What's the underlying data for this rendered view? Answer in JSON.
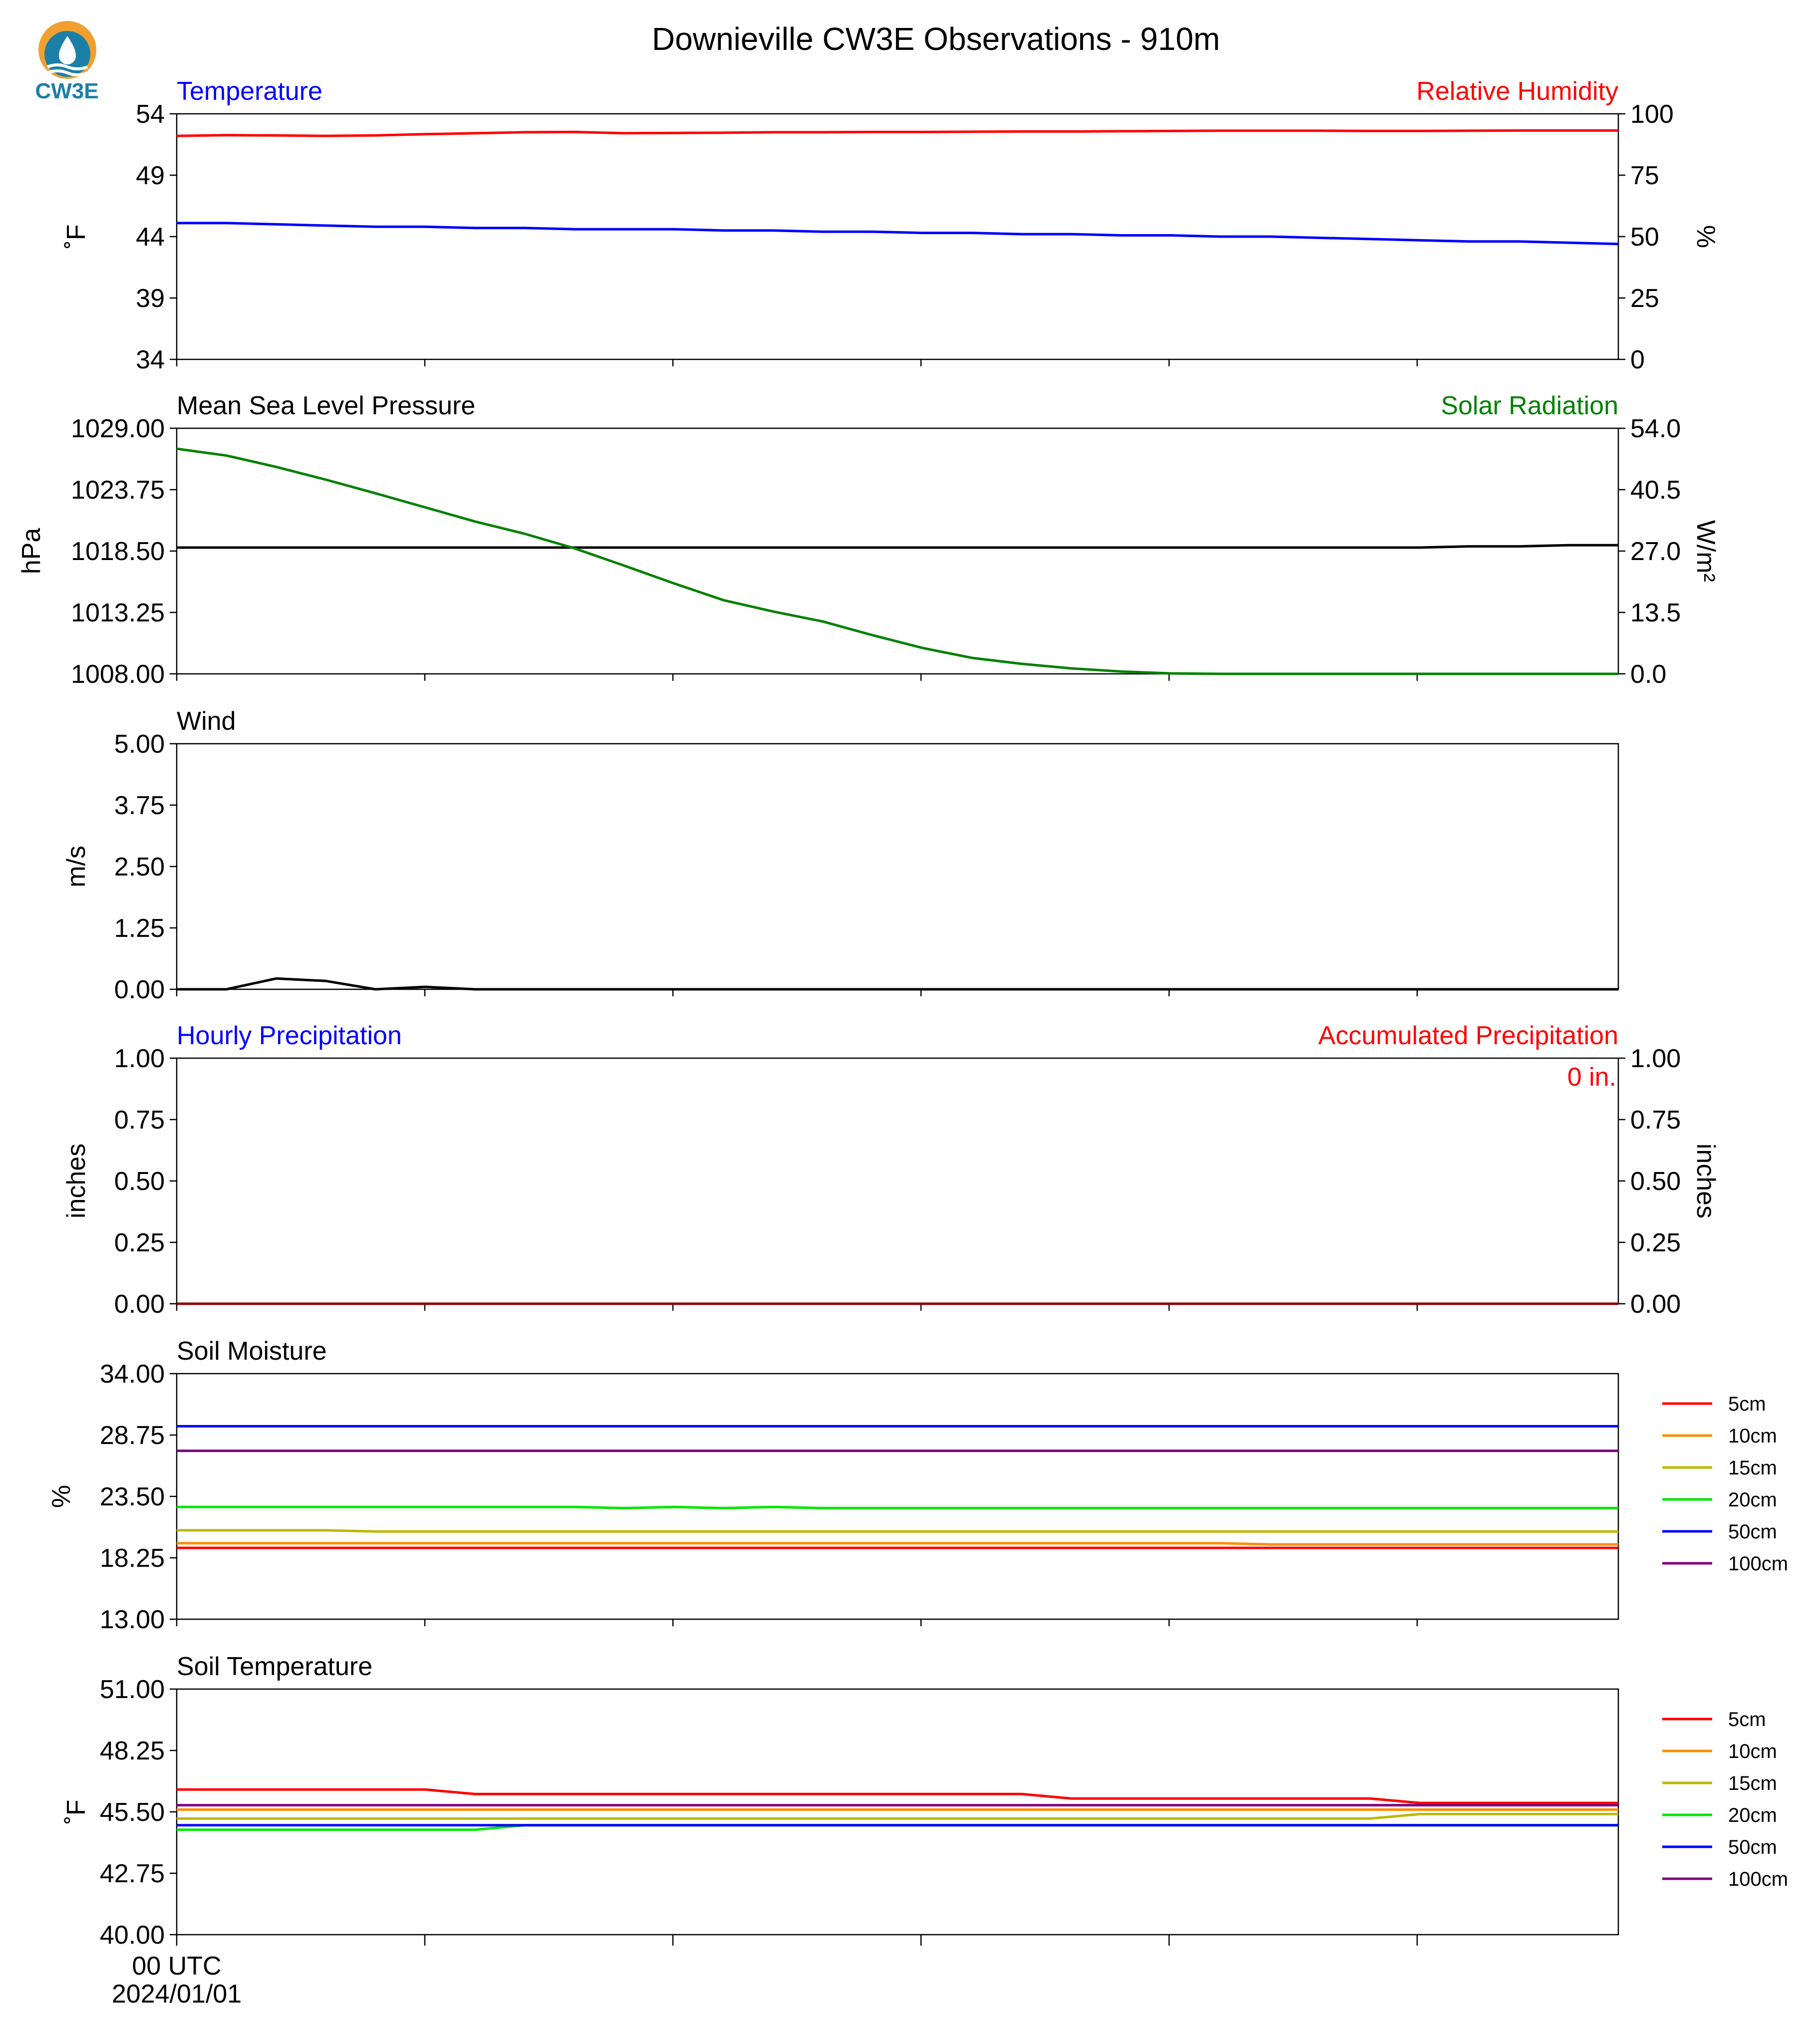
{
  "logo": {
    "text": "CW3E"
  },
  "figure": {
    "title": "Downieville CW3E Observations - 910m"
  },
  "colors": {
    "temperature": "#0000ff",
    "humidity": "#ff0000",
    "pressure": "#000000",
    "solar": "#008000",
    "wind": "#000000",
    "hourly_precip": "#0000ff",
    "accum_precip": "#ff0000",
    "accum_line": "#8b0000",
    "5cm": "#ff0000",
    "10cm": "#ff8c00",
    "15cm": "#bdb800",
    "20cm": "#00e600",
    "50cm": "#0000ff",
    "100cm": "#800080"
  },
  "chart_data": [
    {
      "type": "line",
      "x": [
        0,
        1,
        2,
        3,
        4,
        5,
        6,
        7,
        8,
        9,
        10,
        11,
        12,
        13,
        14,
        15,
        16,
        17,
        18,
        19,
        20,
        21,
        22,
        23,
        24,
        25,
        26,
        27,
        28,
        29
      ],
      "left_title": "Temperature",
      "right_title": "Relative Humidity",
      "ylabel": "˚F",
      "y2label": "%",
      "ylim": [
        34,
        54
      ],
      "y2lim": [
        0,
        100
      ],
      "yticks": [
        "54",
        "49",
        "44",
        "39",
        "34"
      ],
      "y2ticks": [
        "100",
        "75",
        "50",
        "25",
        "0"
      ],
      "series": [
        {
          "axis": "left",
          "color": "#0000ff",
          "values": [
            45.1,
            45.1,
            45.0,
            44.9,
            44.8,
            44.8,
            44.7,
            44.7,
            44.6,
            44.6,
            44.6,
            44.5,
            44.5,
            44.4,
            44.4,
            44.3,
            44.3,
            44.2,
            44.2,
            44.1,
            44.1,
            44.0,
            44.0,
            43.9,
            43.8,
            43.7,
            43.6,
            43.6,
            43.5,
            43.4
          ]
        },
        {
          "axis": "right",
          "color": "#ff0000",
          "values": [
            91.0,
            91.3,
            91.2,
            91.0,
            91.2,
            91.7,
            92.1,
            92.5,
            92.6,
            92.1,
            92.2,
            92.3,
            92.5,
            92.5,
            92.6,
            92.6,
            92.7,
            92.8,
            92.8,
            92.9,
            93.0,
            93.1,
            93.1,
            93.1,
            93.0,
            93.0,
            93.1,
            93.2,
            93.2,
            93.2
          ]
        }
      ]
    },
    {
      "type": "line",
      "x": [
        0,
        1,
        2,
        3,
        4,
        5,
        6,
        7,
        8,
        9,
        10,
        11,
        12,
        13,
        14,
        15,
        16,
        17,
        18,
        19,
        20,
        21,
        22,
        23,
        24,
        25,
        26,
        27,
        28,
        29
      ],
      "left_title": "Mean Sea Level Pressure",
      "right_title": "Solar Radiation",
      "ylabel": "hPa",
      "y2label": "W/m²",
      "ylim": [
        1008,
        1029
      ],
      "y2lim": [
        0,
        54
      ],
      "yticks": [
        "1029.00",
        "1023.75",
        "1018.50",
        "1013.25",
        "1008.00"
      ],
      "y2ticks": [
        "54.0",
        "40.5",
        "27.0",
        "13.5",
        "0.0"
      ],
      "series": [
        {
          "axis": "left",
          "color": "#000000",
          "values": [
            1018.8,
            1018.8,
            1018.8,
            1018.8,
            1018.8,
            1018.8,
            1018.8,
            1018.8,
            1018.8,
            1018.8,
            1018.8,
            1018.8,
            1018.8,
            1018.8,
            1018.8,
            1018.8,
            1018.8,
            1018.8,
            1018.8,
            1018.8,
            1018.8,
            1018.8,
            1018.8,
            1018.8,
            1018.8,
            1018.8,
            1018.9,
            1018.9,
            1019.0,
            1019.0
          ]
        },
        {
          "axis": "right",
          "color": "#008000",
          "values": [
            49.5,
            48.0,
            45.5,
            42.7,
            39.7,
            36.6,
            33.5,
            30.8,
            27.6,
            23.8,
            19.9,
            16.2,
            13.7,
            11.5,
            8.5,
            5.7,
            3.5,
            2.2,
            1.2,
            0.5,
            0.1,
            0,
            0,
            0,
            0,
            0,
            0,
            0,
            0,
            0
          ]
        }
      ]
    },
    {
      "type": "line",
      "x": [
        0,
        1,
        2,
        3,
        4,
        5,
        6,
        7,
        8,
        9,
        10,
        11,
        12,
        13,
        14,
        15,
        16,
        17,
        18,
        19,
        20,
        21,
        22,
        23,
        24,
        25,
        26,
        27,
        28,
        29
      ],
      "left_title": "Wind",
      "ylabel": "m/s",
      "ylim": [
        0,
        5
      ],
      "yticks": [
        "5.00",
        "3.75",
        "2.50",
        "1.25",
        "0.00"
      ],
      "series": [
        {
          "axis": "left",
          "color": "#000000",
          "values": [
            0,
            0,
            0.22,
            0.17,
            0,
            0.05,
            0,
            0,
            0,
            0,
            0,
            0,
            0,
            0,
            0,
            0,
            0,
            0,
            0,
            0,
            0,
            0,
            0,
            0,
            0,
            0,
            0,
            0,
            0,
            0
          ]
        }
      ]
    },
    {
      "type": "line",
      "x": [
        0,
        1,
        2,
        3,
        4,
        5,
        6,
        7,
        8,
        9,
        10,
        11,
        12,
        13,
        14,
        15,
        16,
        17,
        18,
        19,
        20,
        21,
        22,
        23,
        24,
        25,
        26,
        27,
        28,
        29
      ],
      "left_title": "Hourly Precipitation",
      "right_title": "Accumulated Precipitation",
      "ylabel": "inches",
      "y2label": "inches",
      "ylim": [
        0,
        1
      ],
      "y2lim": [
        0,
        1
      ],
      "yticks": [
        "1.00",
        "0.75",
        "0.50",
        "0.25",
        "0.00"
      ],
      "y2ticks": [
        "1.00",
        "0.75",
        "0.50",
        "0.25",
        "0.00"
      ],
      "annotation": "0 in.",
      "series": [
        {
          "axis": "left",
          "color": "#0000ff",
          "values": [
            0,
            0,
            0,
            0,
            0,
            0,
            0,
            0,
            0,
            0,
            0,
            0,
            0,
            0,
            0,
            0,
            0,
            0,
            0,
            0,
            0,
            0,
            0,
            0,
            0,
            0,
            0,
            0,
            0,
            0
          ]
        },
        {
          "axis": "right",
          "color": "#8b0000",
          "values": [
            0,
            0,
            0,
            0,
            0,
            0,
            0,
            0,
            0,
            0,
            0,
            0,
            0,
            0,
            0,
            0,
            0,
            0,
            0,
            0,
            0,
            0,
            0,
            0,
            0,
            0,
            0,
            0,
            0,
            0
          ]
        }
      ]
    },
    {
      "type": "line",
      "x": [
        0,
        1,
        2,
        3,
        4,
        5,
        6,
        7,
        8,
        9,
        10,
        11,
        12,
        13,
        14,
        15,
        16,
        17,
        18,
        19,
        20,
        21,
        22,
        23,
        24,
        25,
        26,
        27,
        28,
        29
      ],
      "left_title": "Soil Moisture",
      "ylabel": "%",
      "ylim": [
        13,
        34
      ],
      "yticks": [
        "34.00",
        "28.75",
        "23.50",
        "18.25",
        "13.00"
      ],
      "legend": "right",
      "series": [
        {
          "name": "5cm",
          "color": "#ff0000",
          "values": [
            19.1,
            19.1,
            19.1,
            19.1,
            19.1,
            19.1,
            19.1,
            19.1,
            19.1,
            19.1,
            19.1,
            19.1,
            19.1,
            19.1,
            19.1,
            19.1,
            19.1,
            19.1,
            19.1,
            19.1,
            19.1,
            19.1,
            19.1,
            19.1,
            19.1,
            19.1,
            19.1,
            19.1,
            19.1,
            19.1
          ]
        },
        {
          "name": "10cm",
          "color": "#ff8c00",
          "values": [
            19.5,
            19.5,
            19.5,
            19.5,
            19.5,
            19.5,
            19.5,
            19.5,
            19.5,
            19.5,
            19.5,
            19.5,
            19.5,
            19.5,
            19.5,
            19.5,
            19.5,
            19.5,
            19.5,
            19.5,
            19.5,
            19.5,
            19.4,
            19.4,
            19.4,
            19.4,
            19.4,
            19.4,
            19.4,
            19.4
          ]
        },
        {
          "name": "15cm",
          "color": "#bdb800",
          "values": [
            20.6,
            20.6,
            20.6,
            20.6,
            20.5,
            20.5,
            20.5,
            20.5,
            20.5,
            20.5,
            20.5,
            20.5,
            20.5,
            20.5,
            20.5,
            20.5,
            20.5,
            20.5,
            20.5,
            20.5,
            20.5,
            20.5,
            20.5,
            20.5,
            20.5,
            20.5,
            20.5,
            20.5,
            20.5,
            20.5
          ]
        },
        {
          "name": "20cm",
          "color": "#00e600",
          "values": [
            22.6,
            22.6,
            22.6,
            22.6,
            22.6,
            22.6,
            22.6,
            22.6,
            22.6,
            22.5,
            22.6,
            22.5,
            22.6,
            22.5,
            22.5,
            22.5,
            22.5,
            22.5,
            22.5,
            22.5,
            22.5,
            22.5,
            22.5,
            22.5,
            22.5,
            22.5,
            22.5,
            22.5,
            22.5,
            22.5
          ]
        },
        {
          "name": "50cm",
          "color": "#0000ff",
          "values": [
            29.5,
            29.5,
            29.5,
            29.5,
            29.5,
            29.5,
            29.5,
            29.5,
            29.5,
            29.5,
            29.5,
            29.5,
            29.5,
            29.5,
            29.5,
            29.5,
            29.5,
            29.5,
            29.5,
            29.5,
            29.5,
            29.5,
            29.5,
            29.5,
            29.5,
            29.5,
            29.5,
            29.5,
            29.5,
            29.5
          ]
        },
        {
          "name": "100cm",
          "color": "#800080",
          "values": [
            27.4,
            27.4,
            27.4,
            27.4,
            27.4,
            27.4,
            27.4,
            27.4,
            27.4,
            27.4,
            27.4,
            27.4,
            27.4,
            27.4,
            27.4,
            27.4,
            27.4,
            27.4,
            27.4,
            27.4,
            27.4,
            27.4,
            27.4,
            27.4,
            27.4,
            27.4,
            27.4,
            27.4,
            27.4,
            27.4
          ]
        }
      ]
    },
    {
      "type": "line",
      "x": [
        0,
        1,
        2,
        3,
        4,
        5,
        6,
        7,
        8,
        9,
        10,
        11,
        12,
        13,
        14,
        15,
        16,
        17,
        18,
        19,
        20,
        21,
        22,
        23,
        24,
        25,
        26,
        27,
        28,
        29
      ],
      "left_title": "Soil Temperature",
      "ylabel": "˚F",
      "ylim": [
        40,
        51
      ],
      "yticks": [
        "51.00",
        "48.25",
        "45.50",
        "42.75",
        "40.00"
      ],
      "xticks": [
        "00 UTC\n2024/01/01",
        "",
        "",
        "",
        "",
        ""
      ],
      "legend": "right",
      "series": [
        {
          "name": "5cm",
          "color": "#ff0000",
          "values": [
            46.5,
            46.5,
            46.5,
            46.5,
            46.5,
            46.5,
            46.3,
            46.3,
            46.3,
            46.3,
            46.3,
            46.3,
            46.3,
            46.3,
            46.3,
            46.3,
            46.3,
            46.3,
            46.1,
            46.1,
            46.1,
            46.1,
            46.1,
            46.1,
            46.1,
            45.9,
            45.9,
            45.9,
            45.9,
            45.9
          ]
        },
        {
          "name": "10cm",
          "color": "#ff8c00",
          "values": [
            45.6,
            45.6,
            45.6,
            45.6,
            45.6,
            45.6,
            45.6,
            45.6,
            45.6,
            45.6,
            45.6,
            45.6,
            45.6,
            45.6,
            45.6,
            45.6,
            45.6,
            45.6,
            45.6,
            45.6,
            45.6,
            45.6,
            45.6,
            45.6,
            45.6,
            45.6,
            45.6,
            45.6,
            45.6,
            45.6
          ]
        },
        {
          "name": "15cm",
          "color": "#bdb800",
          "values": [
            45.2,
            45.2,
            45.2,
            45.2,
            45.2,
            45.2,
            45.2,
            45.2,
            45.2,
            45.2,
            45.2,
            45.2,
            45.2,
            45.2,
            45.2,
            45.2,
            45.2,
            45.2,
            45.2,
            45.2,
            45.2,
            45.2,
            45.2,
            45.2,
            45.2,
            45.4,
            45.4,
            45.4,
            45.4,
            45.4
          ]
        },
        {
          "name": "20cm",
          "color": "#00e600",
          "values": [
            44.7,
            44.7,
            44.7,
            44.7,
            44.7,
            44.7,
            44.7,
            44.9,
            44.9,
            44.9,
            44.9,
            44.9,
            44.9,
            44.9,
            44.9,
            44.9,
            44.9,
            44.9,
            44.9,
            44.9,
            44.9,
            44.9,
            44.9,
            44.9,
            44.9,
            44.9,
            44.9,
            44.9,
            44.9,
            44.9
          ]
        },
        {
          "name": "50cm",
          "color": "#0000ff",
          "values": [
            44.9,
            44.9,
            44.9,
            44.9,
            44.9,
            44.9,
            44.9,
            44.9,
            44.9,
            44.9,
            44.9,
            44.9,
            44.9,
            44.9,
            44.9,
            44.9,
            44.9,
            44.9,
            44.9,
            44.9,
            44.9,
            44.9,
            44.9,
            44.9,
            44.9,
            44.9,
            44.9,
            44.9,
            44.9,
            44.9
          ]
        },
        {
          "name": "100cm",
          "color": "#800080",
          "values": [
            45.8,
            45.8,
            45.8,
            45.8,
            45.8,
            45.8,
            45.8,
            45.8,
            45.8,
            45.8,
            45.8,
            45.8,
            45.8,
            45.8,
            45.8,
            45.8,
            45.8,
            45.8,
            45.8,
            45.8,
            45.8,
            45.8,
            45.8,
            45.8,
            45.8,
            45.8,
            45.8,
            45.8,
            45.8,
            45.8
          ]
        }
      ]
    }
  ]
}
